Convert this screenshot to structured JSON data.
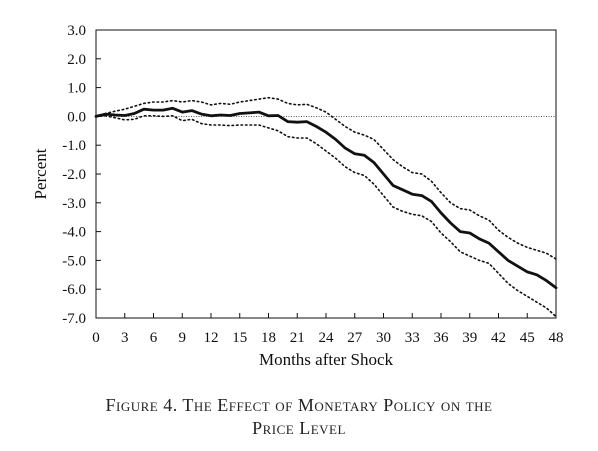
{
  "chart_data": {
    "type": "line",
    "title": "",
    "xlabel": "Months after Shock",
    "ylabel": "Percent",
    "xlim": [
      0,
      48
    ],
    "ylim": [
      -7,
      3
    ],
    "x_ticks": [
      0,
      3,
      6,
      9,
      12,
      15,
      18,
      21,
      24,
      27,
      30,
      33,
      36,
      39,
      42,
      45,
      48
    ],
    "y_ticks": [
      3.0,
      2.0,
      1.0,
      0.0,
      -1.0,
      -2.0,
      -3.0,
      -4.0,
      -5.0,
      -6.0,
      -7.0
    ],
    "y_tick_labels": [
      "3.0",
      "2.0",
      "1.0",
      "0.0",
      "-1.0",
      "-2.0",
      "-3.0",
      "-4.0",
      "-5.0",
      "-6.0",
      "-7.0"
    ],
    "grid": false,
    "zero_line": true,
    "x": [
      0,
      1,
      2,
      3,
      4,
      5,
      6,
      7,
      8,
      9,
      10,
      11,
      12,
      13,
      14,
      15,
      16,
      17,
      18,
      19,
      20,
      21,
      22,
      23,
      24,
      25,
      26,
      27,
      28,
      29,
      30,
      31,
      32,
      33,
      34,
      35,
      36,
      37,
      38,
      39,
      40,
      41,
      42,
      43,
      44,
      45,
      46,
      47,
      48
    ],
    "series": [
      {
        "style": "solid",
        "values": [
          0.0,
          0.08,
          0.05,
          0.03,
          0.1,
          0.25,
          0.22,
          0.22,
          0.28,
          0.15,
          0.2,
          0.08,
          0.02,
          0.05,
          0.03,
          0.1,
          0.12,
          0.15,
          0.02,
          0.03,
          -0.18,
          -0.2,
          -0.18,
          -0.35,
          -0.55,
          -0.8,
          -1.1,
          -1.3,
          -1.35,
          -1.6,
          -2.0,
          -2.4,
          -2.55,
          -2.7,
          -2.75,
          -2.95,
          -3.35,
          -3.7,
          -4.0,
          -4.05,
          -4.25,
          -4.4,
          -4.7,
          -5.0,
          -5.2,
          -5.4,
          -5.5,
          -5.7,
          -5.95
        ]
      },
      {
        "style": "dotted",
        "values": [
          0.0,
          0.1,
          0.18,
          0.25,
          0.35,
          0.45,
          0.5,
          0.5,
          0.55,
          0.5,
          0.55,
          0.5,
          0.4,
          0.45,
          0.42,
          0.5,
          0.55,
          0.6,
          0.65,
          0.6,
          0.45,
          0.4,
          0.42,
          0.3,
          0.15,
          -0.1,
          -0.35,
          -0.55,
          -0.65,
          -0.8,
          -1.15,
          -1.5,
          -1.75,
          -1.95,
          -2.0,
          -2.25,
          -2.65,
          -3.0,
          -3.2,
          -3.25,
          -3.45,
          -3.6,
          -3.95,
          -4.2,
          -4.4,
          -4.55,
          -4.65,
          -4.75,
          -4.95
        ]
      },
      {
        "style": "dotted",
        "values": [
          0.0,
          0.02,
          -0.05,
          -0.12,
          -0.1,
          0.02,
          0.02,
          0.0,
          0.02,
          -0.15,
          -0.1,
          -0.25,
          -0.3,
          -0.3,
          -0.32,
          -0.3,
          -0.3,
          -0.3,
          -0.4,
          -0.5,
          -0.7,
          -0.75,
          -0.75,
          -0.95,
          -1.2,
          -1.45,
          -1.75,
          -1.95,
          -2.05,
          -2.35,
          -2.75,
          -3.15,
          -3.3,
          -3.4,
          -3.45,
          -3.65,
          -4.05,
          -4.35,
          -4.7,
          -4.85,
          -5.0,
          -5.1,
          -5.45,
          -5.8,
          -6.05,
          -6.25,
          -6.45,
          -6.65,
          -6.95
        ]
      }
    ]
  },
  "caption": {
    "line1": "Figure 4. The Effect of Monetary Policy on the",
    "line2": "Price Level"
  }
}
